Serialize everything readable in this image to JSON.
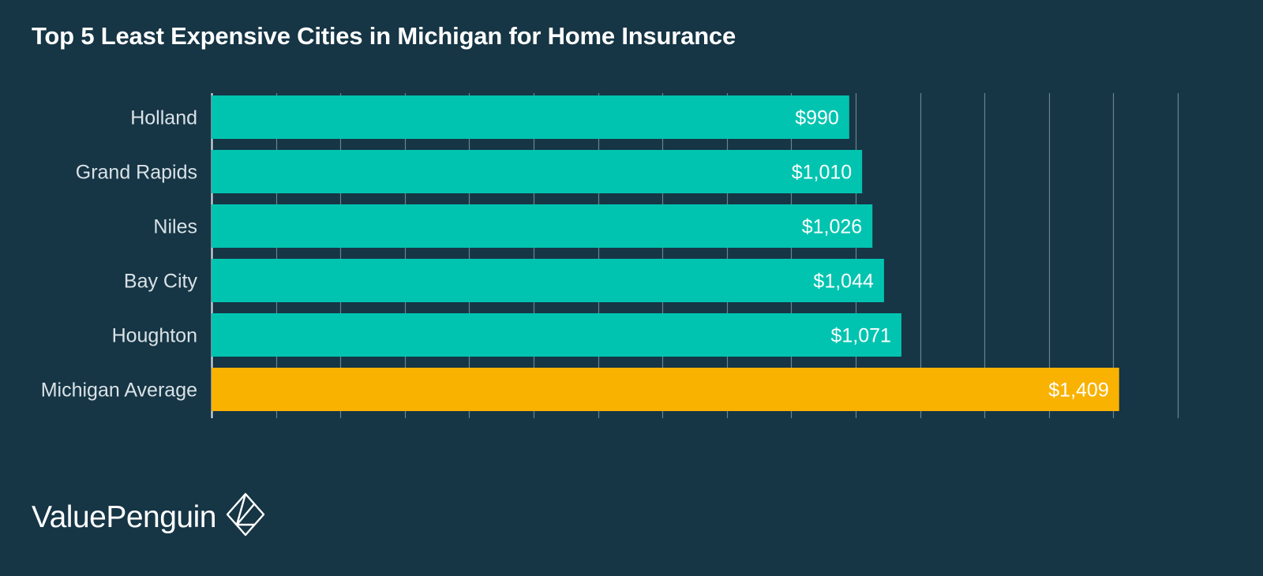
{
  "chart_data": {
    "type": "bar",
    "orientation": "horizontal",
    "title": "Top 5 Least Expensive Cities in Michigan for Home Insurance",
    "categories": [
      "Holland",
      "Grand Rapids",
      "Niles",
      "Bay City",
      "Houghton",
      "Michigan Average"
    ],
    "values": [
      990,
      1010,
      1026,
      1044,
      1071,
      1409
    ],
    "value_labels": [
      "$990",
      "$1,010",
      "$1,026",
      "$1,044",
      "$1,071",
      "$1,409"
    ],
    "xlim": [
      0,
      1500
    ],
    "grid": true,
    "colors": [
      "#00c4b0",
      "#00c4b0",
      "#00c4b0",
      "#00c4b0",
      "#00c4b0",
      "#f9b200"
    ],
    "background": "#163545"
  },
  "brand": {
    "name": "ValuePenguin",
    "logo_icon": "diamond-logo-icon"
  }
}
